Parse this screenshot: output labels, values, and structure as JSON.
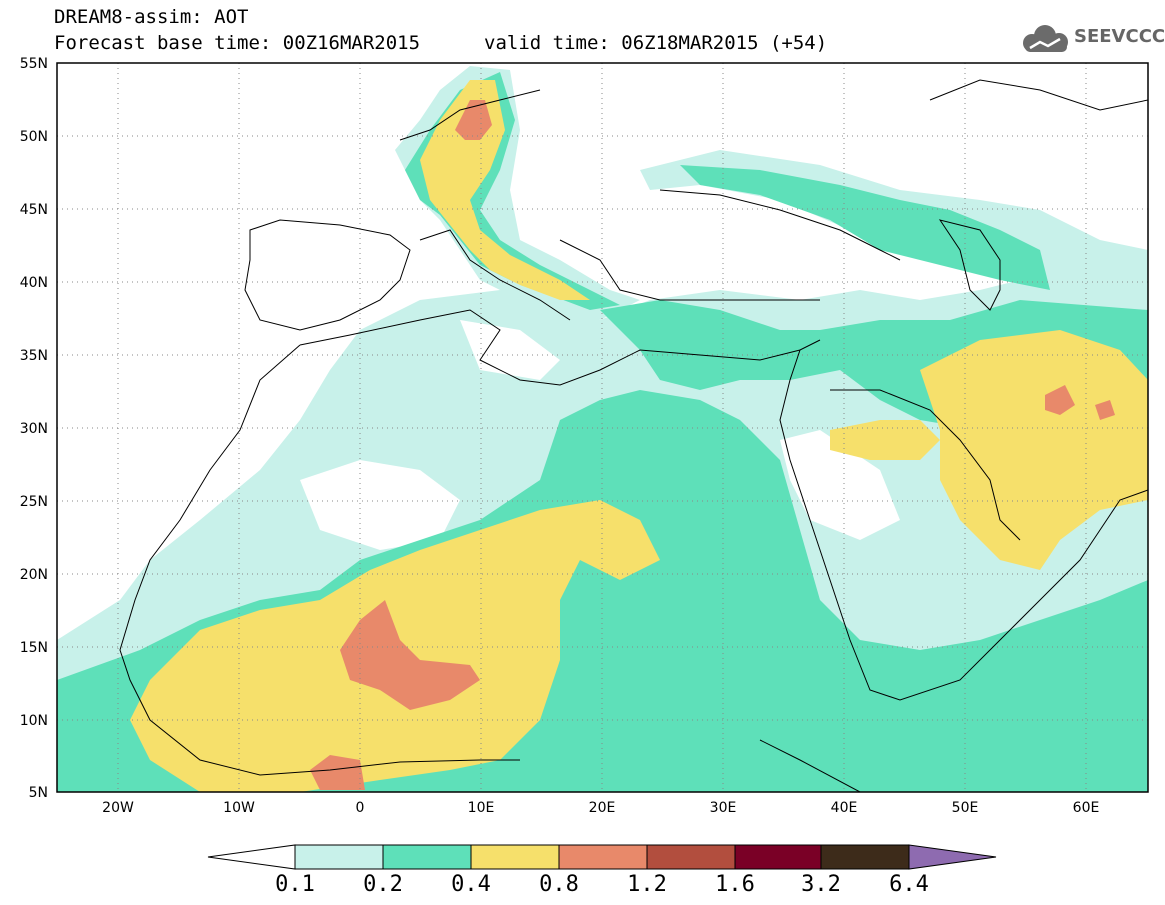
{
  "header": {
    "title": "DREAM8-assim: AOT",
    "base_time": "Forecast base time: 00Z16MAR2015",
    "valid_time": "valid time: 06Z18MAR2015 (+54)"
  },
  "logo": {
    "icon": "cloud-icon",
    "text": "SEEVCCC",
    "color": "#6b6b6b"
  },
  "map": {
    "lon_range": [
      -25,
      65
    ],
    "lat_range": [
      5,
      55
    ],
    "lat_ticks": [
      "5N",
      "10N",
      "15N",
      "20N",
      "25N",
      "30N",
      "35N",
      "40N",
      "45N",
      "50N",
      "55N"
    ],
    "lon_ticks": [
      "20W",
      "10W",
      "0",
      "10E",
      "20E",
      "30E",
      "40E",
      "50E",
      "60E"
    ],
    "gridlines": "dotted"
  },
  "colorbar": {
    "colors": [
      "#ffffff",
      "#c8f1ea",
      "#5ee0b9",
      "#f6e06b",
      "#e8896a",
      "#b24e3e",
      "#7a0026",
      "#3d2b1a",
      "#8e6bb0"
    ],
    "labels": [
      "0.1",
      "0.2",
      "0.4",
      "0.8",
      "1.2",
      "1.6",
      "3.2",
      "6.4"
    ]
  }
}
